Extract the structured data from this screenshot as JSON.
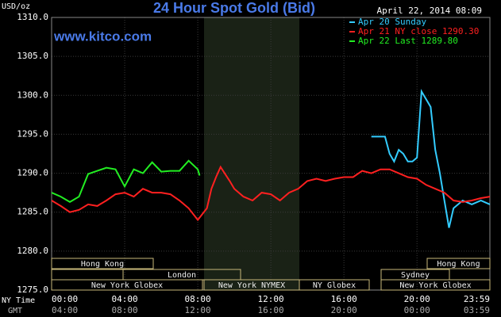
{
  "chart_data": {
    "type": "line",
    "title": "24 Hour Spot Gold (Bid)",
    "subtitle": "www.kitco.com",
    "timestamp": "April 22, 2014 08:09",
    "y_label": "USD/oz",
    "x_row_labels": [
      "NY Time",
      "GMT"
    ],
    "ylim": [
      1275,
      1310
    ],
    "yticks": [
      {
        "value": 1275,
        "label": "1275.0"
      },
      {
        "value": 1280,
        "label": "1280.0"
      },
      {
        "value": 1285,
        "label": "1285.0"
      },
      {
        "value": 1290,
        "label": "1290.0"
      },
      {
        "value": 1295,
        "label": "1295.0"
      },
      {
        "value": 1300,
        "label": "1300.0"
      },
      {
        "value": 1305,
        "label": "1305.0"
      },
      {
        "value": 1310,
        "label": "1310.0"
      }
    ],
    "xlim": [
      0,
      23.99
    ],
    "xticks": [
      {
        "value": 0,
        "label": "00:00"
      },
      {
        "value": 4,
        "label": "04:00"
      },
      {
        "value": 8,
        "label": "08:00"
      },
      {
        "value": 12,
        "label": "12:00"
      },
      {
        "value": 16,
        "label": "16:00"
      },
      {
        "value": 20,
        "label": "20:00"
      },
      {
        "value": 23.99,
        "label": "23:59"
      }
    ],
    "gmt_labels": [
      "04:00",
      "08:00",
      "12:00",
      "16:00",
      "20:00",
      "00:00",
      "03:59"
    ],
    "grid": true,
    "sessions": [
      "Hong Kong",
      "London",
      "New York Globex",
      "New York NYMEX",
      "NY Globex",
      "Sydney",
      "Hong Kong",
      "New York Globex"
    ],
    "series": [
      {
        "name": "Apr 20 Sunday",
        "color": "#33ccff",
        "x": [
          17.5,
          18,
          18.25,
          18.5,
          18.75,
          19,
          19.25,
          19.5,
          19.75,
          20,
          20.25,
          20.5,
          20.75,
          21,
          21.25,
          21.5,
          21.75,
          22,
          22.5,
          23,
          23.5,
          23.99
        ],
        "values": [
          1294.7,
          1294.7,
          1294.7,
          1292.5,
          1291.5,
          1293,
          1292.5,
          1291.5,
          1291.5,
          1292,
          1300.5,
          1299.5,
          1298.5,
          1293,
          1290,
          1286.5,
          1283,
          1285.5,
          1286.5,
          1286,
          1286.5,
          1286
        ]
      },
      {
        "name": "Apr 21 NY close 1290.30",
        "color": "#ff2020",
        "x": [
          0,
          0.5,
          1,
          1.5,
          2,
          2.5,
          3,
          3.5,
          4,
          4.5,
          5,
          5.5,
          6,
          6.5,
          7,
          7.5,
          8,
          8.5,
          8.75,
          9,
          9.25,
          9.75,
          10,
          10.5,
          11,
          11.5,
          12,
          12.5,
          13,
          13.5,
          14,
          14.5,
          15,
          15.5,
          16,
          16.5,
          17,
          17.5,
          18,
          18.5,
          19,
          19.5,
          20,
          20.5,
          21,
          21.5,
          22,
          22.5,
          23,
          23.5,
          23.99
        ],
        "values": [
          1286.5,
          1285.8,
          1285,
          1285.3,
          1286,
          1285.8,
          1286.5,
          1287.3,
          1287.5,
          1287,
          1288,
          1287.5,
          1287.5,
          1287.3,
          1286.5,
          1285.5,
          1284,
          1285.5,
          1288,
          1289.5,
          1290.8,
          1289,
          1288,
          1287,
          1286.5,
          1287.5,
          1287.3,
          1286.5,
          1287.5,
          1288,
          1289,
          1289.3,
          1289,
          1289.3,
          1289.5,
          1289.5,
          1290.3,
          1290,
          1290.5,
          1290.5,
          1290,
          1289.5,
          1289.3,
          1288.5,
          1288,
          1287.5,
          1286.5,
          1286.3,
          1286.5,
          1286.8,
          1287
        ]
      },
      {
        "name": "Apr 22 Last 1289.80",
        "color": "#22ee22",
        "x": [
          0,
          0.5,
          1,
          1.5,
          2,
          2.5,
          3,
          3.5,
          4,
          4.5,
          5,
          5.5,
          6,
          6.5,
          7,
          7.5,
          8,
          8.1
        ],
        "values": [
          1287.5,
          1287,
          1286.3,
          1287,
          1289.9,
          1290.3,
          1290.7,
          1290.5,
          1288.3,
          1290.5,
          1290,
          1291.4,
          1290.2,
          1290.3,
          1290.3,
          1291.6,
          1290.5,
          1289.7
        ]
      }
    ]
  }
}
